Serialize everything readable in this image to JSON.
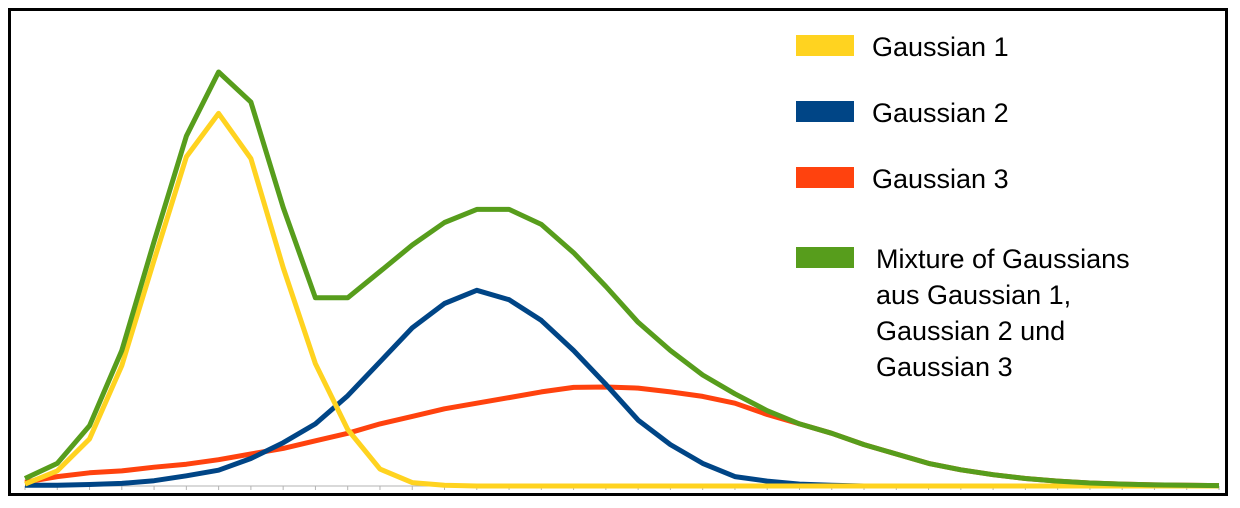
{
  "chart_data": {
    "type": "line",
    "title": "",
    "xlabel": "",
    "ylabel": "",
    "x": [
      0,
      1,
      2,
      3,
      4,
      5,
      6,
      7,
      8,
      9,
      10,
      11,
      12,
      13,
      14,
      15,
      16,
      17,
      18,
      19,
      20,
      21,
      22,
      23,
      24,
      25,
      26,
      27,
      28,
      29,
      30,
      31,
      32,
      33,
      34,
      35,
      36,
      37
    ],
    "xlim": [
      0,
      37
    ],
    "ylim": [
      0,
      1
    ],
    "legend_position": "top-right",
    "grid": false,
    "series": [
      {
        "name": "Gaussian 1",
        "color": "#ffd320",
        "values": [
          0.005,
          0.04,
          0.125,
          0.32,
          0.6,
          0.875,
          0.99,
          0.87,
          0.58,
          0.325,
          0.15,
          0.045,
          0.009,
          0.002,
          0,
          0,
          0,
          0,
          0,
          0,
          0,
          0,
          0,
          0,
          0,
          0,
          0,
          0,
          0,
          0,
          0,
          0,
          0,
          0,
          0,
          0,
          0,
          0
        ]
      },
      {
        "name": "Gaussian 2",
        "color": "#004586",
        "values": [
          0.002,
          0.002,
          0.004,
          0.007,
          0.014,
          0.027,
          0.042,
          0.073,
          0.115,
          0.165,
          0.24,
          0.33,
          0.42,
          0.485,
          0.52,
          0.495,
          0.44,
          0.36,
          0.27,
          0.175,
          0.11,
          0.06,
          0.025,
          0.013,
          0.005,
          0.002,
          0,
          0,
          0,
          0,
          0,
          0,
          0,
          0,
          0,
          0,
          0,
          0
        ]
      },
      {
        "name": "Gaussian 3",
        "color": "#ff420e",
        "values": [
          0.01,
          0.025,
          0.035,
          0.04,
          0.05,
          0.058,
          0.07,
          0.085,
          0.1,
          0.12,
          0.14,
          0.165,
          0.185,
          0.205,
          0.22,
          0.235,
          0.25,
          0.262,
          0.263,
          0.26,
          0.25,
          0.238,
          0.22,
          0.19,
          0.165,
          0.14,
          0.11,
          0.085,
          0.06,
          0.043,
          0.03,
          0.02,
          0.013,
          0.008,
          0.005,
          0.003,
          0.002,
          0.001
        ]
      },
      {
        "name": "Mixture of Gaussians aus Gaussian 1, Gaussian 2 und Gaussian 3",
        "color": "#579d1c",
        "values": [
          0.02,
          0.06,
          0.16,
          0.36,
          0.65,
          0.93,
          1.1,
          1.02,
          0.74,
          0.5,
          0.5,
          0.57,
          0.64,
          0.7,
          0.735,
          0.735,
          0.695,
          0.62,
          0.53,
          0.435,
          0.36,
          0.295,
          0.245,
          0.2,
          0.165,
          0.14,
          0.11,
          0.085,
          0.06,
          0.043,
          0.03,
          0.02,
          0.013,
          0.008,
          0.005,
          0.003,
          0.002,
          0.001
        ]
      }
    ],
    "legend": [
      {
        "lines": [
          "Gaussian 1"
        ]
      },
      {
        "lines": [
          "Gaussian 2"
        ]
      },
      {
        "lines": [
          "Gaussian 3"
        ]
      },
      {
        "lines": [
          "Mixture of Gaussians",
          "aus Gaussian 1,",
          "Gaussian 2 und",
          "Gaussian 3"
        ]
      }
    ]
  }
}
